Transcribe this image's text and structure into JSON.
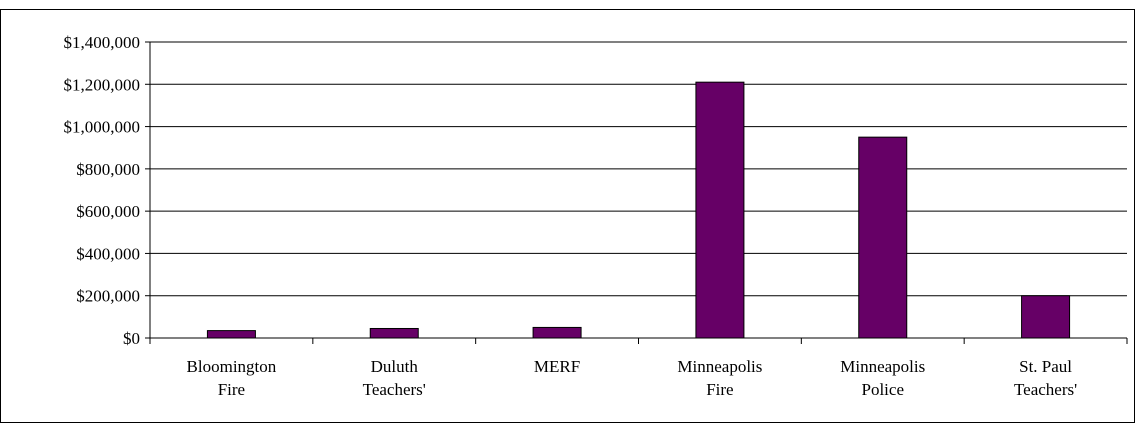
{
  "chart_data": {
    "type": "bar",
    "title": "",
    "xlabel": "",
    "ylabel": "",
    "ylim": [
      0,
      1400000
    ],
    "y_ticks": [
      "$0",
      "$200,000",
      "$400,000",
      "$600,000",
      "$800,000",
      "$1,000,000",
      "$1,200,000",
      "$1,400,000"
    ],
    "y_tick_values": [
      0,
      200000,
      400000,
      600000,
      800000,
      1000000,
      1200000,
      1400000
    ],
    "grid": true,
    "bar_color": "#660066",
    "categories": [
      [
        "Bloomington",
        "Fire"
      ],
      [
        "Duluth",
        "Teachers'"
      ],
      [
        "MERF"
      ],
      [
        "Minneapolis",
        "Fire"
      ],
      [
        "Minneapolis",
        "Police"
      ],
      [
        "St. Paul",
        "Teachers'"
      ]
    ],
    "values": [
      35000,
      45000,
      50000,
      1210000,
      950000,
      200000
    ]
  }
}
